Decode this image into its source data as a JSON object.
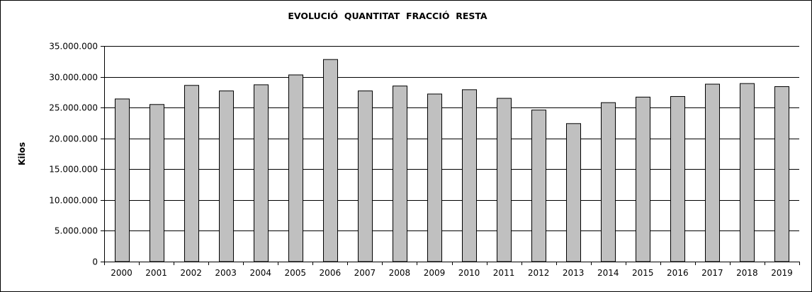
{
  "chart_data": {
    "type": "bar",
    "title": "EVOLUCIÓ  QUANTITAT  FRACCIÓ  RESTA",
    "xlabel": "",
    "ylabel": "Kilos",
    "ylim": [
      0,
      35000000
    ],
    "yticks": [
      0,
      5000000,
      10000000,
      15000000,
      20000000,
      25000000,
      30000000,
      35000000
    ],
    "ytick_labels": [
      "0",
      "5.000.000",
      "10.000.000",
      "15.000.000",
      "20.000.000",
      "25.000.000",
      "30.000.000",
      "35.000.000"
    ],
    "grid": true,
    "legend": "none",
    "bar_color": "#c0c0c0",
    "categories": [
      "2000",
      "2001",
      "2002",
      "2003",
      "2004",
      "2005",
      "2006",
      "2007",
      "2008",
      "2009",
      "2010",
      "2011",
      "2012",
      "2013",
      "2014",
      "2015",
      "2016",
      "2017",
      "2018",
      "2019"
    ],
    "values": [
      26400000,
      25500000,
      28600000,
      27700000,
      28700000,
      30300000,
      32800000,
      27700000,
      28500000,
      27200000,
      27900000,
      26500000,
      24600000,
      22400000,
      25800000,
      26700000,
      26800000,
      28800000,
      28900000,
      28400000
    ]
  }
}
